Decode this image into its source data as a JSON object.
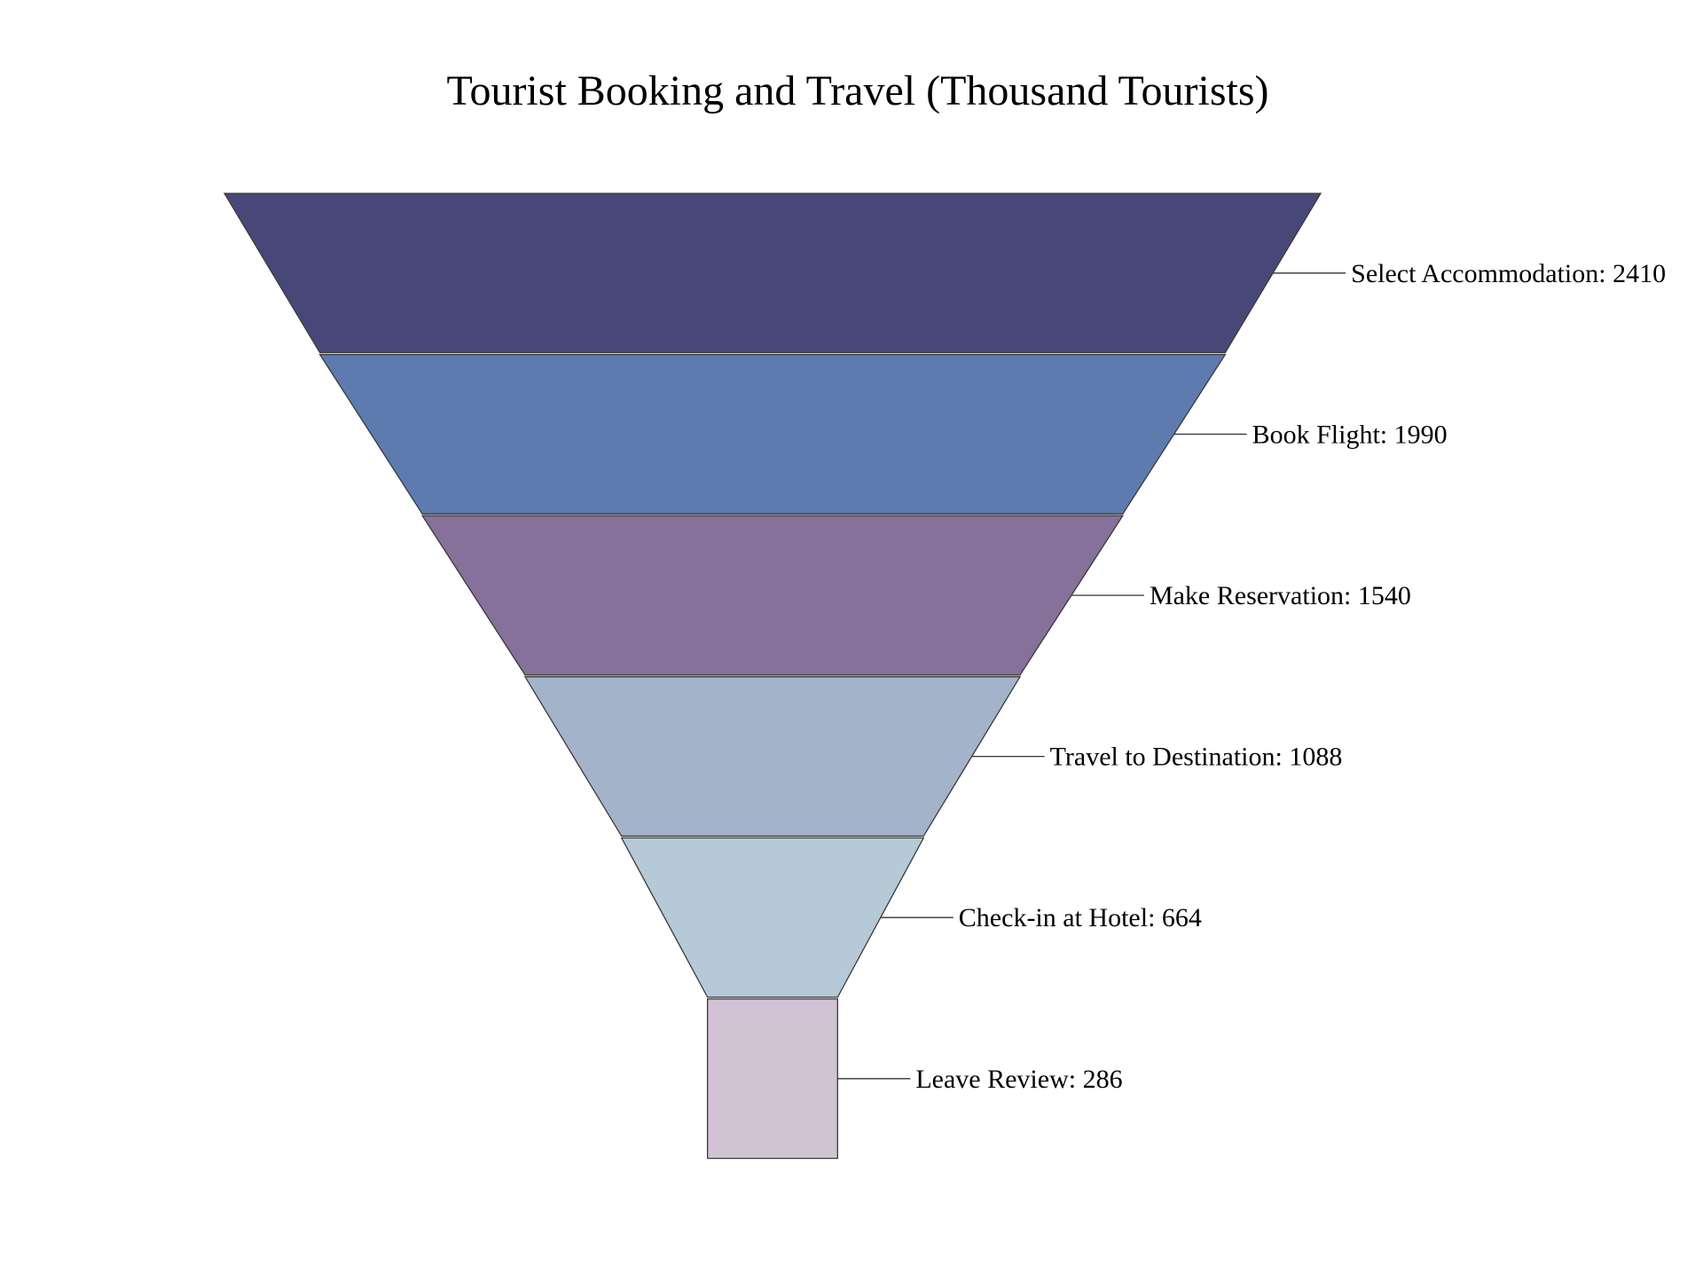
{
  "chart_data": {
    "type": "funnel",
    "title": "Tourist Booking and Travel (Thousand Tourists)",
    "stages": [
      {
        "name": "Select Accommodation",
        "value": 2410,
        "color": "#484878"
      },
      {
        "name": "Book Flight",
        "value": 1990,
        "color": "#5e7bb0"
      },
      {
        "name": "Make Reservation",
        "value": 1540,
        "color": "#857199"
      },
      {
        "name": "Travel to Destination",
        "value": 1088,
        "color": "#a3b3c9"
      },
      {
        "name": "Check-in at Hotel",
        "value": 664,
        "color": "#b5c9d6"
      },
      {
        "name": "Leave Review",
        "value": 286,
        "color": "#d1c3d4"
      }
    ],
    "label_format": "{name}: {value}"
  }
}
